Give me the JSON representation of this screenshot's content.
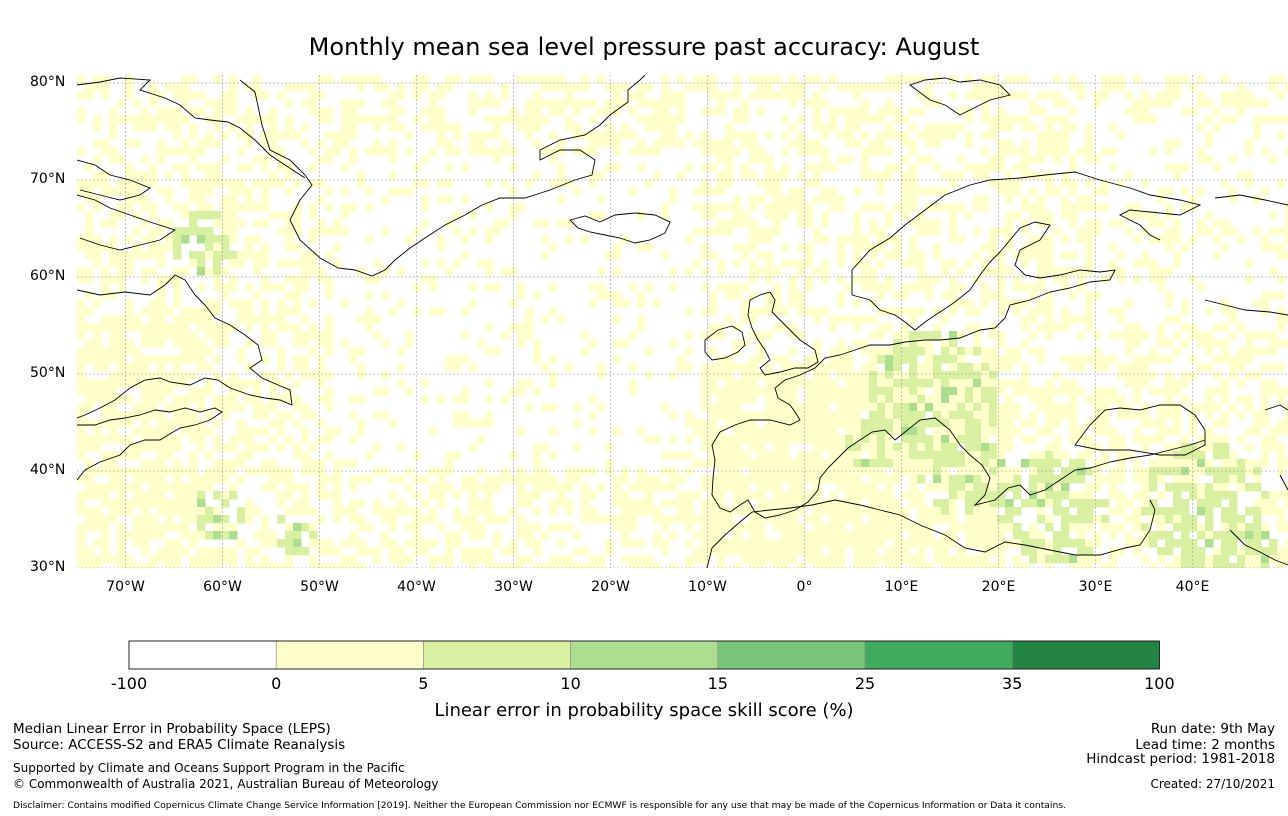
{
  "title": "Monthly mean sea level pressure past accuracy: August",
  "map": {
    "latitude_labels": [
      "80°N",
      "70°N",
      "60°N",
      "50°N",
      "40°N",
      "30°N"
    ],
    "latitudes": [
      80,
      70,
      60,
      50,
      40,
      30
    ],
    "longitude_labels": [
      "70°W",
      "60°W",
      "50°W",
      "40°W",
      "30°W",
      "20°W",
      "10°W",
      "0°",
      "10°E",
      "20°E",
      "30°E",
      "40°E"
    ],
    "longitudes": [
      -70,
      -60,
      -50,
      -40,
      -30,
      -20,
      -10,
      0,
      10,
      20,
      30,
      40
    ],
    "extent": {
      "lon_min": -75,
      "lon_max": 50,
      "lat_min": 30,
      "lat_max": 81
    }
  },
  "colorbar": {
    "ticks": [
      "-100",
      "0",
      "5",
      "10",
      "15",
      "25",
      "35",
      "100"
    ],
    "colors": [
      "#ffffff",
      "#ffffcc",
      "#d9f0a3",
      "#addd8e",
      "#78c679",
      "#41ab5d",
      "#238443"
    ],
    "label": "Linear error in probability space skill score (%)"
  },
  "footer": {
    "left_line1": "Median Linear Error in Probability Space (LEPS)",
    "left_line2": "Source: ACCESS-S2 and ERA5 Climate Reanalysis",
    "left_line3": "Supported by Climate and Oceans Support Program in the Pacific",
    "left_line4": "© Commonwealth of Australia 2021, Australian Bureau of Meteorology",
    "right_line1": "Run date: 9th May",
    "right_line2": "Lead time: 2 months",
    "right_line3": "Hindcast period: 1981-2018",
    "right_line4": "Created: 27/10/2021",
    "disclaimer": "Disclaimer: Contains modified Copernicus Climate Change Service Information [2019]. Neither the European Commission nor ECMWF is responsible for any use that may be made of the Copernicus Information or Data it contains."
  }
}
